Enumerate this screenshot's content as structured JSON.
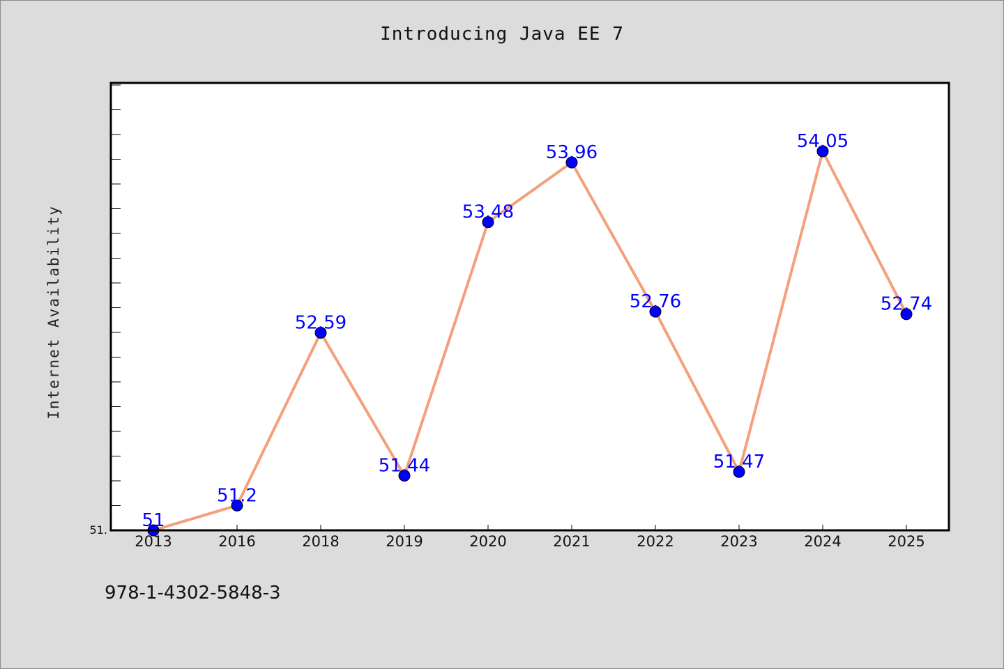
{
  "chart_data": {
    "type": "line",
    "title": "Introducing Java EE 7",
    "xlabel": "",
    "ylabel": "Internet Availability",
    "categories": [
      "2013",
      "2016",
      "2018",
      "2019",
      "2020",
      "2021",
      "2022",
      "2023",
      "2024",
      "2025"
    ],
    "series": [
      {
        "values": [
          51,
          51.2,
          52.59,
          51.44,
          53.48,
          53.96,
          52.76,
          51.47,
          54.05,
          52.74
        ],
        "data_labels": [
          "51",
          "51.2",
          "52.59",
          "51.44",
          "53.48",
          "53.96",
          "52.76",
          "51.47",
          "54.05",
          "52.74"
        ]
      }
    ],
    "ylim": [
      51,
      54.6
    ],
    "y_tick_labels": [
      "51."
    ],
    "grid": false,
    "legend": "none",
    "colors": {
      "line": "#f4a07c",
      "marker": "#0000ff",
      "data_label": "#0000ff",
      "background": "#dcdcdc",
      "plot_area": "#ffffff"
    }
  },
  "footer": {
    "code": "978-1-4302-5848-3"
  }
}
